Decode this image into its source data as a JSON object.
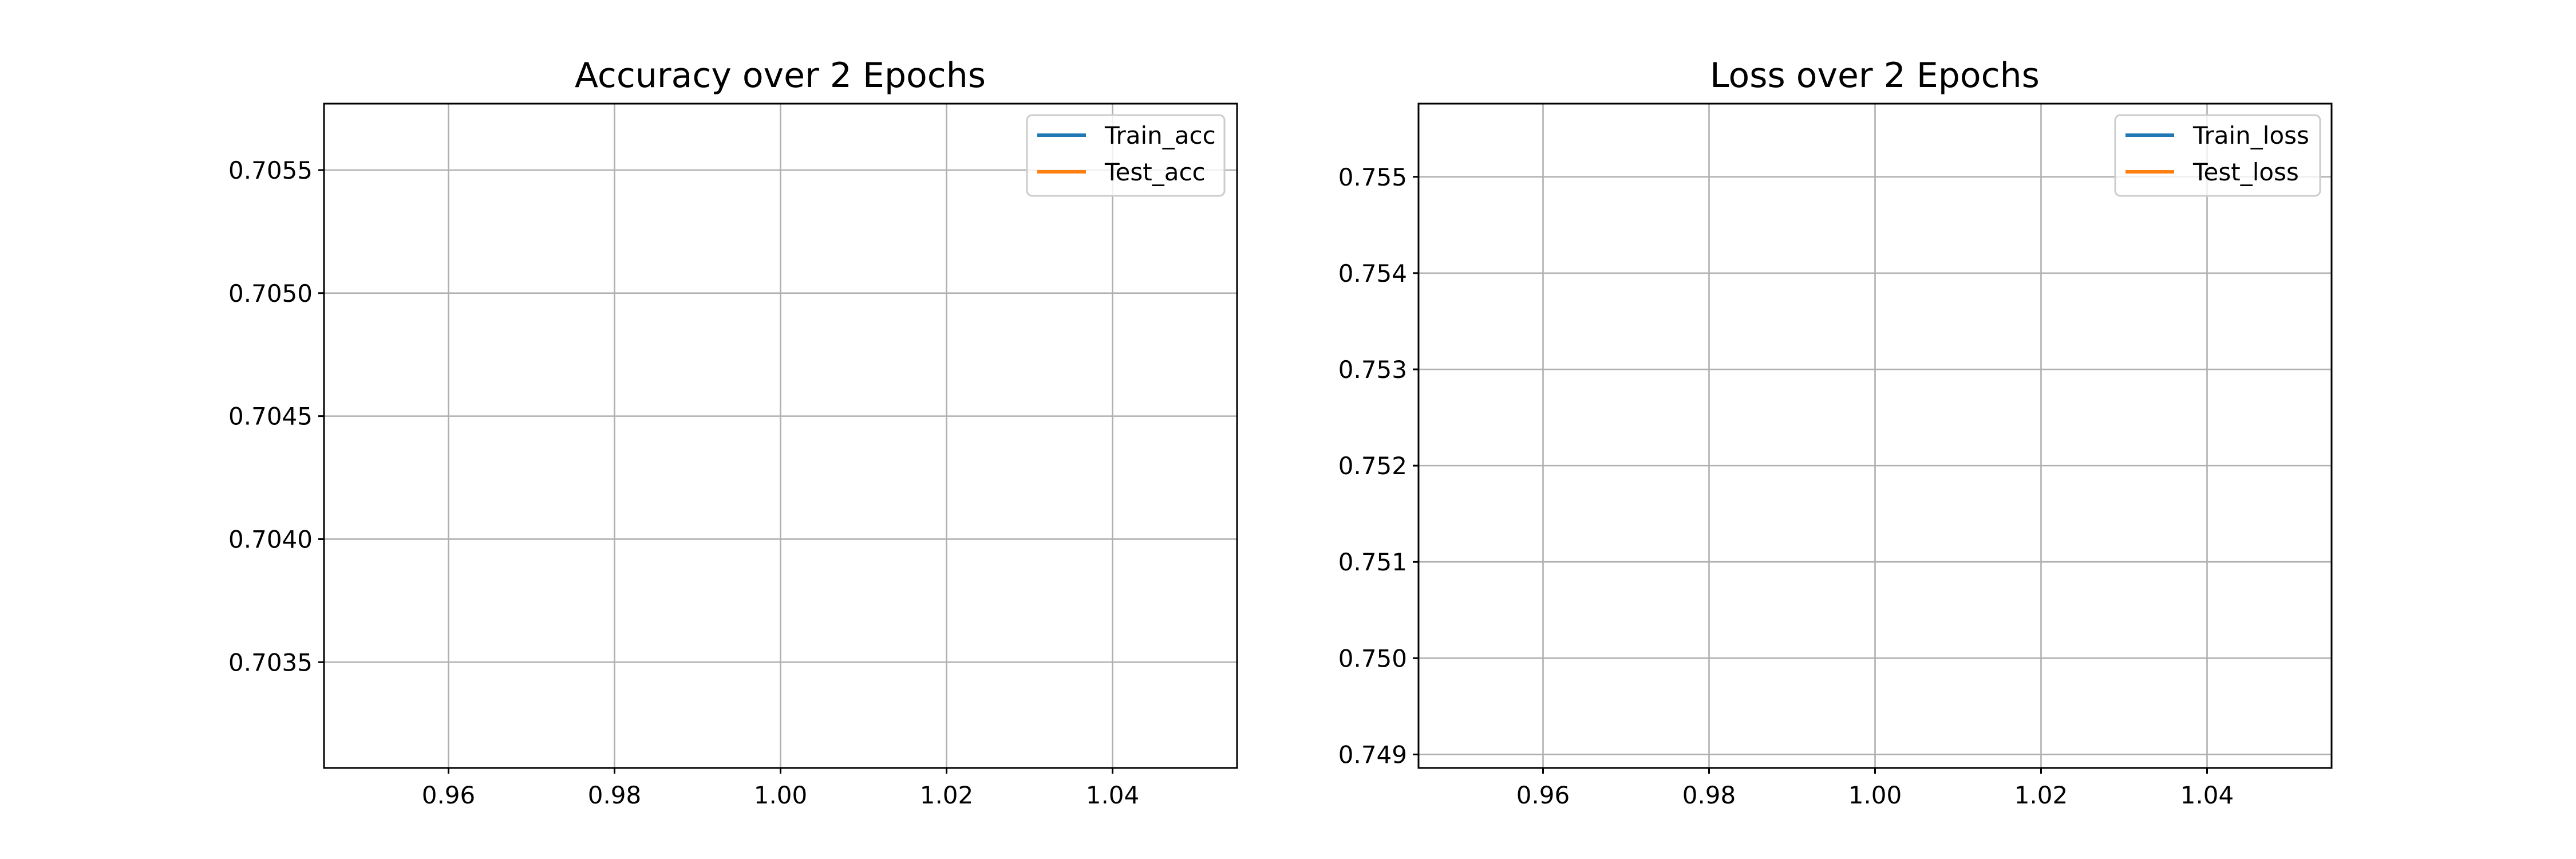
{
  "chart_data": [
    {
      "type": "line",
      "title": "Accuracy over 2 Epochs",
      "xlabel": "",
      "ylabel": "",
      "xlim": [
        0.945,
        1.055
      ],
      "ylim": [
        0.70307,
        0.70577
      ],
      "xticks": [
        0.96,
        0.98,
        1.0,
        1.02,
        1.04
      ],
      "xtick_labels": [
        "0.96",
        "0.98",
        "1.00",
        "1.02",
        "1.04"
      ],
      "yticks": [
        0.7035,
        0.704,
        0.7045,
        0.705,
        0.7055
      ],
      "ytick_labels": [
        "0.7035",
        "0.7040",
        "0.7045",
        "0.7050",
        "0.7055"
      ],
      "grid": true,
      "legend_position": "top-right",
      "series": [
        {
          "name": "Train_acc",
          "color": "#1f77b4",
          "x": [],
          "y": []
        },
        {
          "name": "Test_acc",
          "color": "#ff7f0e",
          "x": [],
          "y": []
        }
      ]
    },
    {
      "type": "line",
      "title": "Loss over 2 Epochs",
      "xlabel": "",
      "ylabel": "",
      "xlim": [
        0.945,
        1.055
      ],
      "ylim": [
        0.74886,
        0.75576
      ],
      "xticks": [
        0.96,
        0.98,
        1.0,
        1.02,
        1.04
      ],
      "xtick_labels": [
        "0.96",
        "0.98",
        "1.00",
        "1.02",
        "1.04"
      ],
      "yticks": [
        0.749,
        0.75,
        0.751,
        0.752,
        0.753,
        0.754,
        0.755
      ],
      "ytick_labels": [
        "0.749",
        "0.750",
        "0.751",
        "0.752",
        "0.753",
        "0.754",
        "0.755"
      ],
      "grid": true,
      "legend_position": "top-right",
      "series": [
        {
          "name": "Train_loss",
          "color": "#1f77b4",
          "x": [],
          "y": []
        },
        {
          "name": "Test_loss",
          "color": "#ff7f0e",
          "x": [],
          "y": []
        }
      ]
    }
  ]
}
